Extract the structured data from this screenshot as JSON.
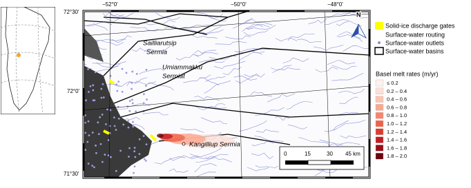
{
  "map": {
    "lat_labels": [
      "72°30'",
      "72°0'",
      "71°30'"
    ],
    "lon_labels": [
      "−52°0'",
      "−50°0'",
      "−48°0'"
    ],
    "places": [
      "Sailliarutsip",
      "Sermia",
      "Umiammakku",
      "Sermiat",
      "Kangilliup Sermia"
    ],
    "north": "N",
    "scale_bar": [
      "0",
      "15",
      "30",
      "45 km"
    ]
  },
  "legend": {
    "items": [
      "Solid-ice discharge gates",
      "Surface-water routing",
      "Surface-water outlets",
      "Surface-water basins"
    ],
    "melt_title": "Basel melt rates (m/yr)",
    "melt_classes": [
      {
        "label": "≤ 0.2",
        "color": "#fff2ee"
      },
      {
        "label": "0.2 – 0.4",
        "color": "#fde0d6"
      },
      {
        "label": "0.4 – 0.6",
        "color": "#fcc4b0"
      },
      {
        "label": "0.6 – 0.8",
        "color": "#fca68c"
      },
      {
        "label": "0.8 – 1.0",
        "color": "#f9856a"
      },
      {
        "label": "1.0 – 1.2",
        "color": "#f06248"
      },
      {
        "label": "1.2 – 1.4",
        "color": "#de3b2f"
      },
      {
        "label": "1.4 – 1.6",
        "color": "#c11c21"
      },
      {
        "label": "1.6 – 1.8",
        "color": "#9a0d17"
      },
      {
        "label": "1.8 – 2.0",
        "color": "#6b0510"
      }
    ]
  }
}
